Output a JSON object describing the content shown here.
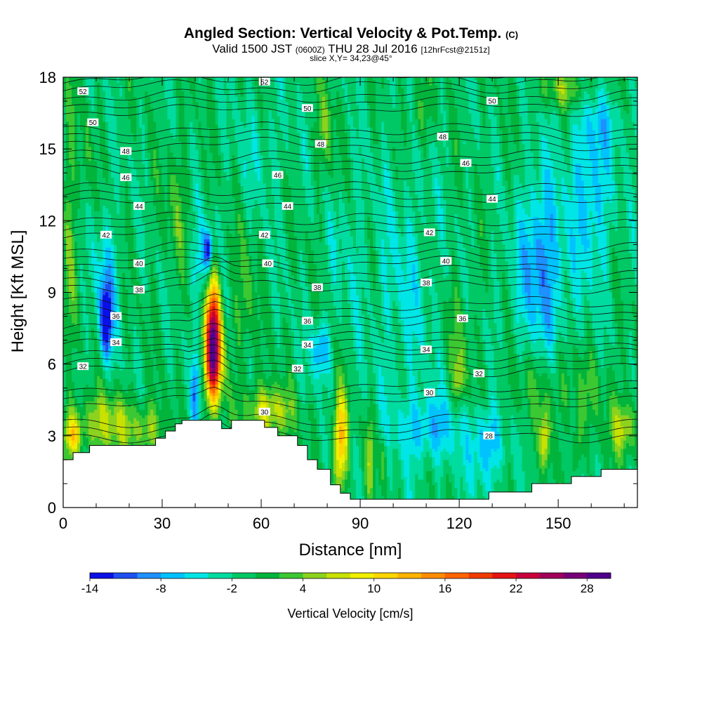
{
  "chart_data": {
    "type": "heatmap",
    "title": {
      "main": "Angled Section: Vertical Velocity & Pot.Temp.",
      "main_suffix": "(C)",
      "valid_prefix": "Valid 1500 JST",
      "valid_utc": "(0600Z)",
      "valid_date": "THU 28 Jul 2016",
      "forecast": "[12hrFcst@2151z]",
      "slice": "slice X,Y= 34,23@45°"
    },
    "xlabel": "Distance [nm]",
    "ylabel": "Height [Kft MSL]",
    "xlim": [
      0,
      174
    ],
    "ylim": [
      0,
      18
    ],
    "xticks": [
      0,
      30,
      60,
      90,
      120,
      150
    ],
    "yticks": [
      0,
      3,
      6,
      9,
      12,
      15,
      18
    ],
    "colorbar": {
      "title": "Vertical Velocity [cm/s]",
      "min": -14,
      "max": 30,
      "step": 2,
      "tick_values": [
        "-14",
        "-8",
        "-2",
        "4",
        "10",
        "16",
        "22",
        "28"
      ],
      "colors": [
        "#0a10e6",
        "#1f4ff2",
        "#1e90ff",
        "#00c2ff",
        "#00e5e5",
        "#00dca0",
        "#00c864",
        "#00b43c",
        "#3cc832",
        "#8cd21e",
        "#c8e100",
        "#f0f000",
        "#ffd700",
        "#ffb400",
        "#ff8c00",
        "#ff6400",
        "#f03c00",
        "#e61414",
        "#c8003c",
        "#a0005a",
        "#780078",
        "#50008c"
      ]
    },
    "terrain_kft": [
      [
        0,
        2.0
      ],
      [
        3,
        2.0
      ],
      [
        3,
        2.3
      ],
      [
        8,
        2.3
      ],
      [
        8,
        2.6
      ],
      [
        28,
        2.6
      ],
      [
        28,
        2.9
      ],
      [
        31,
        2.9
      ],
      [
        31,
        3.2
      ],
      [
        34,
        3.2
      ],
      [
        34,
        3.5
      ],
      [
        36,
        3.5
      ],
      [
        36,
        3.65
      ],
      [
        48,
        3.65
      ],
      [
        48,
        3.3
      ],
      [
        51,
        3.3
      ],
      [
        51,
        3.65
      ],
      [
        61,
        3.65
      ],
      [
        61,
        3.35
      ],
      [
        65,
        3.35
      ],
      [
        65,
        3.0
      ],
      [
        71,
        3.0
      ],
      [
        71,
        2.6
      ],
      [
        74,
        2.6
      ],
      [
        74,
        2.0
      ],
      [
        77,
        2.0
      ],
      [
        77,
        1.6
      ],
      [
        81,
        1.6
      ],
      [
        81,
        0.95
      ],
      [
        84,
        0.95
      ],
      [
        84,
        0.6
      ],
      [
        87,
        0.6
      ],
      [
        87,
        0.35
      ],
      [
        129,
        0.35
      ],
      [
        129,
        0.65
      ],
      [
        142,
        0.65
      ],
      [
        142,
        1.0
      ],
      [
        154,
        1.0
      ],
      [
        154,
        1.3
      ],
      [
        163,
        1.3
      ],
      [
        163,
        1.6
      ],
      [
        174,
        1.6
      ]
    ],
    "theta_labels": [
      {
        "v": "52",
        "x": 6,
        "y": 17.4
      },
      {
        "v": "52",
        "x": 61,
        "y": 17.8
      },
      {
        "v": "50",
        "x": 130,
        "y": 17.0
      },
      {
        "v": "50",
        "x": 74,
        "y": 16.7
      },
      {
        "v": "50",
        "x": 9,
        "y": 16.1
      },
      {
        "v": "48",
        "x": 115,
        "y": 15.5
      },
      {
        "v": "48",
        "x": 78,
        "y": 15.2
      },
      {
        "v": "48",
        "x": 19,
        "y": 14.9
      },
      {
        "v": "46",
        "x": 122,
        "y": 14.4
      },
      {
        "v": "46",
        "x": 65,
        "y": 13.9
      },
      {
        "v": "46",
        "x": 19,
        "y": 13.8
      },
      {
        "v": "44",
        "x": 130,
        "y": 12.9
      },
      {
        "v": "44",
        "x": 68,
        "y": 12.6
      },
      {
        "v": "44",
        "x": 23,
        "y": 12.6
      },
      {
        "v": "42",
        "x": 13,
        "y": 11.4
      },
      {
        "v": "42",
        "x": 61,
        "y": 11.4
      },
      {
        "v": "42",
        "x": 111,
        "y": 11.5
      },
      {
        "v": "40",
        "x": 23,
        "y": 10.2
      },
      {
        "v": "40",
        "x": 62,
        "y": 10.2
      },
      {
        "v": "40",
        "x": 116,
        "y": 10.3
      },
      {
        "v": "38",
        "x": 23,
        "y": 9.1
      },
      {
        "v": "38",
        "x": 77,
        "y": 9.2
      },
      {
        "v": "38",
        "x": 110,
        "y": 9.4
      },
      {
        "v": "36",
        "x": 16,
        "y": 8.0
      },
      {
        "v": "36",
        "x": 74,
        "y": 7.8
      },
      {
        "v": "36",
        "x": 121,
        "y": 7.9
      },
      {
        "v": "34",
        "x": 16,
        "y": 6.9
      },
      {
        "v": "34",
        "x": 74,
        "y": 6.8
      },
      {
        "v": "34",
        "x": 110,
        "y": 6.6
      },
      {
        "v": "32",
        "x": 6,
        "y": 5.9
      },
      {
        "v": "32",
        "x": 71,
        "y": 5.8
      },
      {
        "v": "32",
        "x": 126,
        "y": 5.6
      },
      {
        "v": "30",
        "x": 111,
        "y": 4.8
      },
      {
        "v": "30",
        "x": 61,
        "y": 4.0
      },
      {
        "v": "28",
        "x": 129,
        "y": 3.0
      }
    ],
    "field": {
      "background": -1,
      "blobs": [
        {
          "x": 45.5,
          "y": 7.2,
          "rx": 2.3,
          "ry": 2.4,
          "a": 27
        },
        {
          "x": 46,
          "y": 5.8,
          "rx": 3,
          "ry": 1.6,
          "a": 8
        },
        {
          "x": 44,
          "y": 10.8,
          "rx": 1.3,
          "ry": 0.8,
          "a": -11
        },
        {
          "x": 42,
          "y": 10.2,
          "rx": 3,
          "ry": 1.8,
          "a": -5
        },
        {
          "x": 40,
          "y": 4.8,
          "rx": 1.2,
          "ry": 1.6,
          "a": -8
        },
        {
          "x": 13,
          "y": 7.8,
          "rx": 1.8,
          "ry": 1.5,
          "a": -12
        },
        {
          "x": 13,
          "y": 9.5,
          "rx": 3.5,
          "ry": 2.8,
          "a": -5
        },
        {
          "x": 13,
          "y": 3.5,
          "rx": 11,
          "ry": 1.3,
          "a": 7
        },
        {
          "x": 3,
          "y": 3.0,
          "rx": 2.5,
          "ry": 0.8,
          "a": 9
        },
        {
          "x": 26,
          "y": 3.2,
          "rx": 5,
          "ry": 0.9,
          "a": 5
        },
        {
          "x": 62,
          "y": 4.0,
          "rx": 7,
          "ry": 1.1,
          "a": 9
        },
        {
          "x": 78,
          "y": 6.6,
          "rx": 2.5,
          "ry": 1.2,
          "a": -8
        },
        {
          "x": 84,
          "y": 2.8,
          "rx": 2.2,
          "ry": 2.0,
          "a": 14
        },
        {
          "x": 93,
          "y": 2.2,
          "rx": 1.3,
          "ry": 1.8,
          "a": 6
        },
        {
          "x": 97,
          "y": 2.0,
          "rx": 1.2,
          "ry": 1.0,
          "a": 5
        },
        {
          "x": 111,
          "y": 3.3,
          "rx": 9,
          "ry": 1.4,
          "a": -6
        },
        {
          "x": 128,
          "y": 2.6,
          "rx": 5,
          "ry": 1.7,
          "a": -7
        },
        {
          "x": 120,
          "y": 5.4,
          "rx": 1.8,
          "ry": 1.0,
          "a": 6
        },
        {
          "x": 146,
          "y": 2.8,
          "rx": 1.5,
          "ry": 1.3,
          "a": 9
        },
        {
          "x": 156,
          "y": 2.8,
          "rx": 1.5,
          "ry": 1.3,
          "a": 6
        },
        {
          "x": 170,
          "y": 3.3,
          "rx": 4,
          "ry": 1.1,
          "a": 8
        },
        {
          "x": 145,
          "y": 11.0,
          "rx": 6,
          "ry": 3.5,
          "a": -6
        },
        {
          "x": 160,
          "y": 13.0,
          "rx": 6,
          "ry": 3.2,
          "a": -6
        },
        {
          "x": 145,
          "y": 9.0,
          "rx": 11,
          "ry": 3.0,
          "a": -3
        },
        {
          "x": 162,
          "y": 16.0,
          "rx": 8,
          "ry": 1.5,
          "a": -3
        },
        {
          "x": 103,
          "y": 9.0,
          "rx": 10,
          "ry": 5.5,
          "a": -3
        },
        {
          "x": 86,
          "y": 11.0,
          "rx": 5,
          "ry": 3.0,
          "a": -2
        },
        {
          "x": 60,
          "y": 15.0,
          "rx": 8,
          "ry": 2.5,
          "a": -2
        },
        {
          "x": 2,
          "y": 12.0,
          "rx": 2,
          "ry": 6.0,
          "a": 4
        },
        {
          "x": 7,
          "y": 14.5,
          "rx": 1.5,
          "ry": 2.5,
          "a": 3
        },
        {
          "x": 80,
          "y": 16.0,
          "rx": 3,
          "ry": 2.0,
          "a": 4
        },
        {
          "x": 108,
          "y": 16.5,
          "rx": 3,
          "ry": 1.5,
          "a": 4
        },
        {
          "x": 152,
          "y": 17.5,
          "rx": 8,
          "ry": 0.8,
          "a": 5
        },
        {
          "x": 34,
          "y": 12.5,
          "rx": 4,
          "ry": 3.0,
          "a": 3
        },
        {
          "x": 55,
          "y": 8.5,
          "rx": 3,
          "ry": 3.0,
          "a": 4
        },
        {
          "x": 150,
          "y": 5.0,
          "rx": 20,
          "ry": 1.5,
          "a": 3
        },
        {
          "x": 120,
          "y": 7.5,
          "rx": 4,
          "ry": 2.0,
          "a": 3
        }
      ]
    }
  }
}
